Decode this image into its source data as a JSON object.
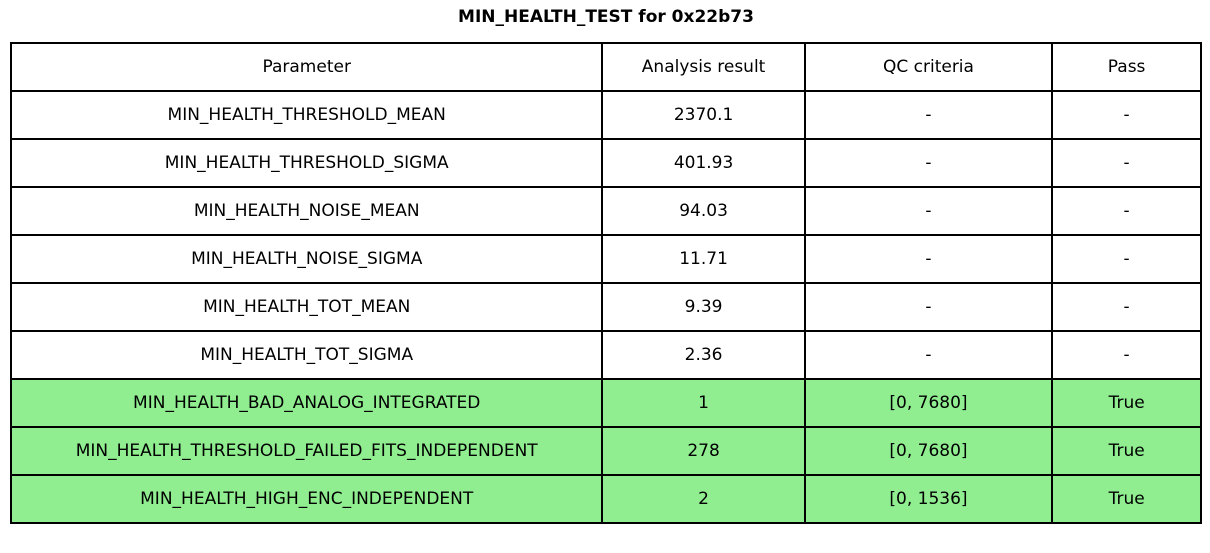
{
  "title": "MIN_HEALTH_TEST for 0x22b73",
  "chart_data": {
    "type": "table",
    "title": "MIN_HEALTH_TEST for 0x22b73",
    "columns": [
      "Parameter",
      "Analysis result",
      "QC criteria",
      "Pass"
    ],
    "rows": [
      {
        "parameter": "MIN_HEALTH_THRESHOLD_MEAN",
        "analysis_result": 2370.1,
        "qc_criteria": "-",
        "pass": "-",
        "highlighted": false
      },
      {
        "parameter": "MIN_HEALTH_THRESHOLD_SIGMA",
        "analysis_result": 401.93,
        "qc_criteria": "-",
        "pass": "-",
        "highlighted": false
      },
      {
        "parameter": "MIN_HEALTH_NOISE_MEAN",
        "analysis_result": 94.03,
        "qc_criteria": "-",
        "pass": "-",
        "highlighted": false
      },
      {
        "parameter": "MIN_HEALTH_NOISE_SIGMA",
        "analysis_result": 11.71,
        "qc_criteria": "-",
        "pass": "-",
        "highlighted": false
      },
      {
        "parameter": "MIN_HEALTH_TOT_MEAN",
        "analysis_result": 9.39,
        "qc_criteria": "-",
        "pass": "-",
        "highlighted": false
      },
      {
        "parameter": "MIN_HEALTH_TOT_SIGMA",
        "analysis_result": 2.36,
        "qc_criteria": "-",
        "pass": "-",
        "highlighted": false
      },
      {
        "parameter": "MIN_HEALTH_BAD_ANALOG_INTEGRATED",
        "analysis_result": 1,
        "qc_criteria": "[0, 7680]",
        "pass": "True",
        "highlighted": true
      },
      {
        "parameter": "MIN_HEALTH_THRESHOLD_FAILED_FITS_INDEPENDENT",
        "analysis_result": 278,
        "qc_criteria": "[0, 7680]",
        "pass": "True",
        "highlighted": true
      },
      {
        "parameter": "MIN_HEALTH_HIGH_ENC_INDEPENDENT",
        "analysis_result": 2,
        "qc_criteria": "[0, 1536]",
        "pass": "True",
        "highlighted": true
      }
    ],
    "colors": {
      "pass_row_bg": "#90EE90",
      "border": "#000000",
      "text": "#000000",
      "background": "#ffffff"
    },
    "layout": {
      "legend": "none",
      "grid": "full-borders",
      "title_position": "top-center"
    }
  }
}
